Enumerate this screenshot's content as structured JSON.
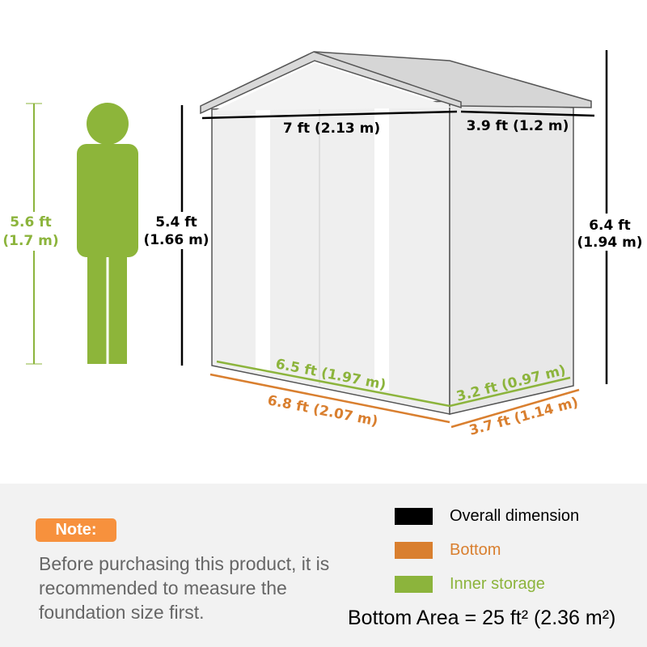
{
  "colors": {
    "overall": "#000000",
    "bottom": "#d97f2f",
    "inner": "#8cb43c",
    "person": "#8db53a",
    "note_badge": "#f7913d"
  },
  "person": {
    "height_ft": "5.6 ft",
    "height_m": "(1.7 m)"
  },
  "shed": {
    "width": "7 ft (2.13 m)",
    "depth": "3.9 ft (1.2 m)",
    "wall_height_ft": "5.4 ft",
    "wall_height_m": "(1.66 m)",
    "total_height_ft": "6.4 ft",
    "total_height_m": "(1.94 m)",
    "inner_width": "6.5 ft (1.97 m)",
    "inner_depth": "3.2 ft (0.97 m)",
    "bottom_width": "6.8 ft (2.07 m)",
    "bottom_depth": "3.7 ft (1.14 m)"
  },
  "note": {
    "label": "Note:",
    "text": "Before purchasing this product, it is recommended to measure the foundation size first."
  },
  "legend": [
    {
      "label": "Overall dimension",
      "color": "#000000"
    },
    {
      "label": "Bottom",
      "color": "#d97f2f"
    },
    {
      "label": "Inner storage",
      "color": "#8cb43c"
    }
  ],
  "bottom_area": "Bottom Area = 25 ft² (2.36 m²)"
}
